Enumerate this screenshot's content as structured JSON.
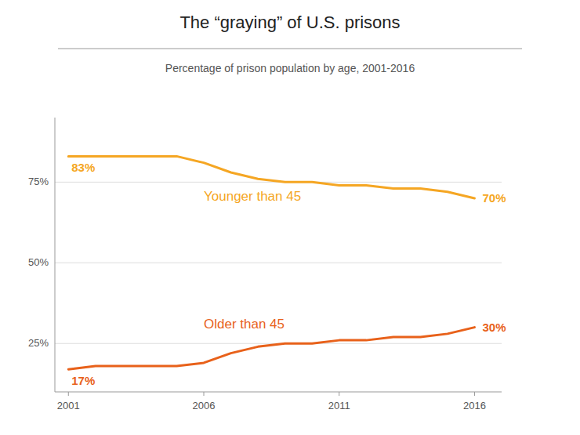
{
  "chart_data": {
    "type": "line",
    "title": "The “graying” of U.S. prisons",
    "subtitle": "Percentage of prison population by age, 2001-2016",
    "x": [
      2001,
      2002,
      2003,
      2004,
      2005,
      2006,
      2007,
      2008,
      2009,
      2010,
      2011,
      2012,
      2013,
      2014,
      2015,
      2016
    ],
    "series": [
      {
        "name": "Younger than 45",
        "color": "#F5A623",
        "values": [
          83,
          83,
          83,
          83,
          83,
          81,
          78,
          76,
          75,
          75,
          74,
          74,
          73,
          73,
          72,
          70
        ],
        "value_labels": [
          "83%",
          null,
          null,
          null,
          null,
          null,
          null,
          null,
          null,
          null,
          null,
          null,
          null,
          null,
          null,
          "70%"
        ]
      },
      {
        "name": "Older than 45",
        "color": "#E8611A",
        "values": [
          17,
          18,
          18,
          18,
          18,
          19,
          22,
          24,
          25,
          25,
          26,
          26,
          27,
          27,
          28,
          30
        ],
        "value_labels": [
          "17%",
          null,
          null,
          null,
          null,
          null,
          null,
          null,
          null,
          null,
          null,
          null,
          null,
          null,
          null,
          "30%"
        ]
      }
    ],
    "xlim": [
      2000.5,
      2017.0
    ],
    "ylim": [
      10,
      95
    ],
    "xticks": [
      2001,
      2006,
      2011,
      2016
    ],
    "yticks": [
      {
        "value": 25,
        "label": "25%"
      },
      {
        "value": 50,
        "label": "50%"
      },
      {
        "value": 75,
        "label": "75%"
      }
    ],
    "grid": true,
    "data_labels": true
  }
}
